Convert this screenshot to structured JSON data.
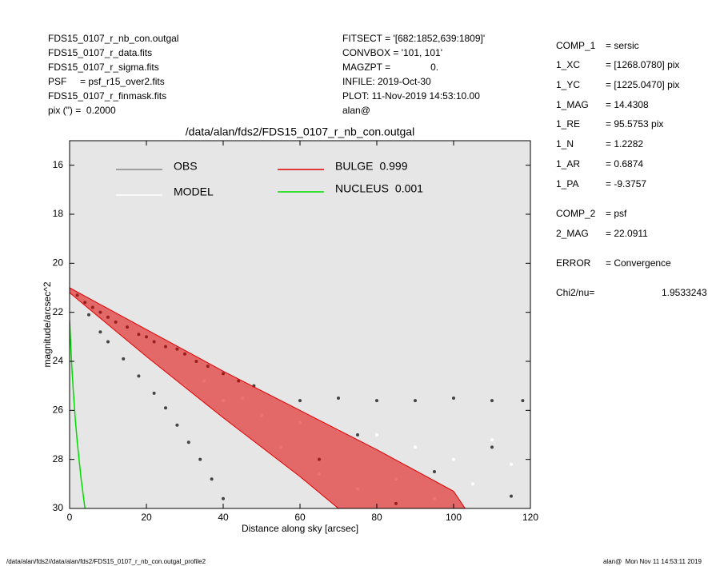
{
  "header": {
    "left": [
      "FDS15_0107_r_nb_con.outgal",
      "FDS15_0107_r_data.fits",
      "FDS15_0107_r_sigma.fits",
      "PSF     = psf_r15_over2.fits",
      "FDS15_0107_r_finmask.fits",
      "pix (\") =  0.2000"
    ],
    "middle": [
      "FITSECT = '[682:1852,639:1809]'",
      "CONVBOX = '101, 101'",
      "MAGZPT =               0.",
      "INFILE: 2019-Oct-30",
      "PLOT: 11-Nov-2019 14:53:10.00",
      "alan@"
    ]
  },
  "fit_panel": [
    [
      "COMP_1",
      "= sersic"
    ],
    [
      "1_XC",
      "= [1268.0780] pix"
    ],
    [
      "1_YC",
      "= [1225.0470] pix"
    ],
    [
      "1_MAG",
      "= 14.4308"
    ],
    [
      "1_RE",
      "= 95.5753 pix"
    ],
    [
      "1_N",
      "= 1.2282"
    ],
    [
      "1_AR",
      "= 0.6874"
    ],
    [
      "1_PA",
      "= -9.3757"
    ],
    [
      "COMP_2",
      "= psf"
    ],
    [
      "2_MAG",
      "= 22.0911"
    ],
    [
      "ERROR",
      "= Convergence"
    ],
    [
      "Chi2/nu=",
      "1.9533243"
    ]
  ],
  "footer": {
    "left": "/data/alan/fds2//data/alan/fds2/FDS15_0107_r_nb_con.outgal_profile2",
    "right": "alan@  Mon Nov 11 14:53:11 2019"
  },
  "chart_data": {
    "type": "scatter",
    "title": "/data/alan/fds2/FDS15_0107_r_nb_con.outgal",
    "x_label": "Distance along sky [arcsec]",
    "y_label": "magnitude/arcsec^2",
    "xlim": [
      0,
      120
    ],
    "ylim": [
      30,
      15
    ],
    "xticks": [
      0,
      20,
      40,
      60,
      80,
      100,
      120
    ],
    "yticks": [
      16,
      18,
      20,
      22,
      24,
      26,
      28,
      30
    ],
    "series": [
      {
        "name": "OBS",
        "color": "#444444",
        "legend_color": "#888888",
        "x": [
          2,
          4,
          6,
          8,
          10,
          12,
          15,
          18,
          20,
          22,
          25,
          28,
          30,
          33,
          36,
          40,
          44,
          48,
          5,
          8,
          10,
          14,
          18,
          22,
          25,
          28,
          31,
          34,
          37,
          40,
          60,
          70,
          80,
          90,
          100,
          110,
          118,
          75,
          95,
          110,
          115,
          65,
          85
        ],
        "values": [
          21.3,
          21.6,
          21.8,
          22.0,
          22.2,
          22.4,
          22.6,
          22.9,
          23.0,
          23.2,
          23.4,
          23.5,
          23.7,
          24.0,
          24.2,
          24.5,
          24.8,
          25.0,
          22.1,
          22.8,
          23.2,
          23.9,
          24.6,
          25.3,
          25.9,
          26.6,
          27.3,
          28.0,
          28.8,
          29.6,
          25.6,
          25.5,
          25.6,
          25.6,
          25.5,
          25.6,
          25.6,
          27.0,
          28.5,
          27.5,
          29.5,
          28.0,
          29.8
        ]
      },
      {
        "name": "MODEL",
        "color": "#ffffff",
        "x": [
          30,
          40,
          50,
          60,
          70,
          80,
          90,
          100,
          110,
          55,
          65,
          75,
          85,
          95,
          105,
          115,
          45,
          35
        ],
        "values": [
          25.0,
          25.6,
          26.2,
          26.5,
          26.8,
          27.0,
          27.5,
          28.0,
          27.2,
          27.5,
          28.6,
          29.2,
          28.8,
          29.6,
          29.0,
          28.2,
          25.5,
          24.8
        ]
      },
      {
        "name": "BULGE",
        "fraction": 0.999,
        "color": "#e00000",
        "x": [
          0,
          20,
          40,
          60,
          80,
          100,
          103
        ],
        "values": [
          21.0,
          22.7,
          24.4,
          26.0,
          27.6,
          29.3,
          30
        ],
        "x2": [
          0,
          20,
          40,
          60,
          70
        ],
        "values2": [
          21.2,
          23.8,
          26.3,
          28.7,
          30
        ]
      },
      {
        "name": "NUCLEUS",
        "fraction": 0.001,
        "color": "#00dd00",
        "x": [
          0,
          0.5,
          1,
          1.5,
          2,
          3,
          4
        ],
        "values": [
          22.3,
          24.0,
          25.3,
          26.4,
          27.3,
          28.8,
          30
        ]
      }
    ]
  }
}
